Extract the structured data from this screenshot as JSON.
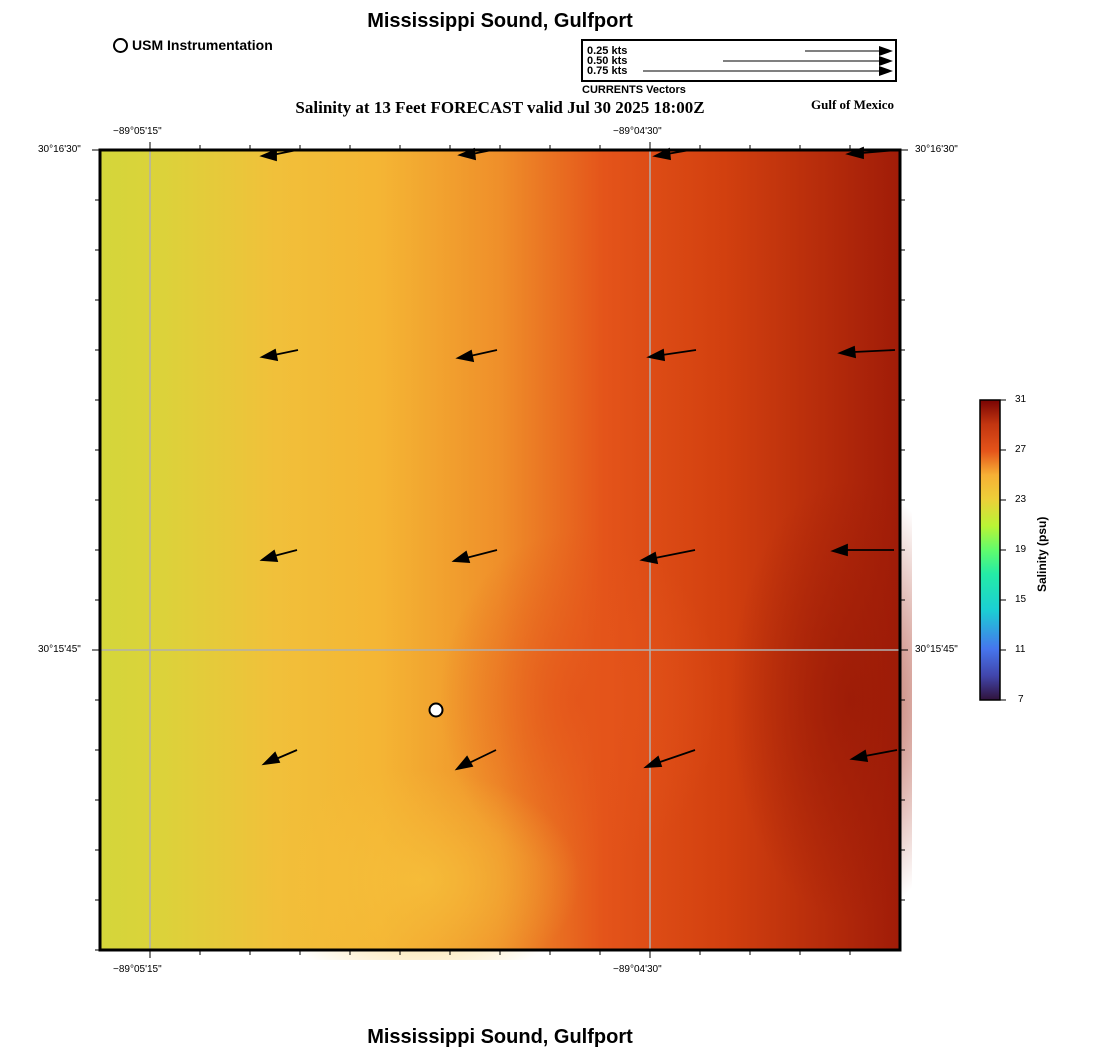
{
  "header": {
    "title": "Mississippi Sound, Gulfport",
    "subtitle": "Salinity at 13 Feet FORECAST valid Jul 30 2025 18:00Z",
    "region_label": "Gulf of Mexico"
  },
  "legend": {
    "station_label": "USM Instrumentation",
    "vector_scale": {
      "rows": [
        {
          "label": "0.25 kts",
          "speed": 0.25
        },
        {
          "label": "0.50 kts",
          "speed": 0.5
        },
        {
          "label": "0.75 kts",
          "speed": 0.75
        }
      ],
      "caption": "CURRENTS Vectors"
    }
  },
  "axes": {
    "lon_ticks": [
      "−89°05'15\"",
      "−89°04'30\""
    ],
    "lat_ticks": [
      "30°16'30\"",
      "30°15'45\""
    ]
  },
  "colorbar": {
    "title": "Salinity (psu)",
    "ticks": [
      "31",
      "27",
      "23",
      "19",
      "15",
      "11",
      "7"
    ],
    "min": 7,
    "max": 31
  },
  "colors": {
    "frame": "#000000",
    "grid": "#b0b0b0",
    "arrow": "#000000"
  },
  "footer": {
    "title": "Mississippi Sound, Gulfport"
  }
}
